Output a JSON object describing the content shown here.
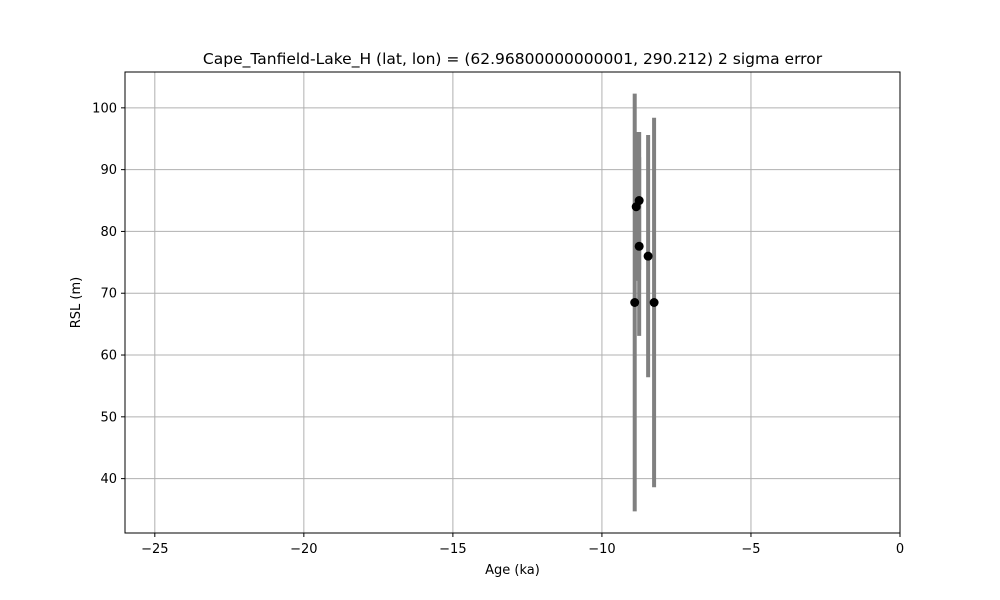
{
  "chart_data": {
    "type": "scatter",
    "title": "Cape_Tanfield-Lake_H (lat, lon) = (62.96800000000001, 290.212)  2 sigma error",
    "xlabel": "Age (ka)",
    "ylabel": "RSL (m)",
    "xlim": [
      -26,
      0
    ],
    "ylim": [
      31.2,
      105.8
    ],
    "xticks": [
      -25,
      -20,
      -15,
      -10,
      -5,
      0
    ],
    "xtick_labels": [
      "−25",
      "−20",
      "−15",
      "−10",
      "−5",
      "0"
    ],
    "yticks": [
      40,
      50,
      60,
      70,
      80,
      90,
      100
    ],
    "ytick_labels": [
      "40",
      "50",
      "60",
      "70",
      "80",
      "90",
      "100"
    ],
    "grid": true,
    "colors": {
      "marker": "#000000",
      "error_bar": "#808080",
      "grid": "#b0b0b0",
      "axes": "#000000"
    },
    "points": [
      {
        "x": -8.9,
        "y": 68.5,
        "yerr_low": 34.7,
        "yerr_high": 102.3
      },
      {
        "x": -8.85,
        "y": 84.0,
        "yerr_low": 72.0,
        "yerr_high": 96.1
      },
      {
        "x": -8.75,
        "y": 85.0,
        "yerr_low": 73.8,
        "yerr_high": 96.1
      },
      {
        "x": -8.75,
        "y": 77.6,
        "yerr_low": 63.1,
        "yerr_high": 92.0
      },
      {
        "x": -8.45,
        "y": 76.0,
        "yerr_low": 56.4,
        "yerr_high": 95.6
      },
      {
        "x": -8.25,
        "y": 68.5,
        "yerr_low": 38.6,
        "yerr_high": 98.4
      }
    ]
  }
}
